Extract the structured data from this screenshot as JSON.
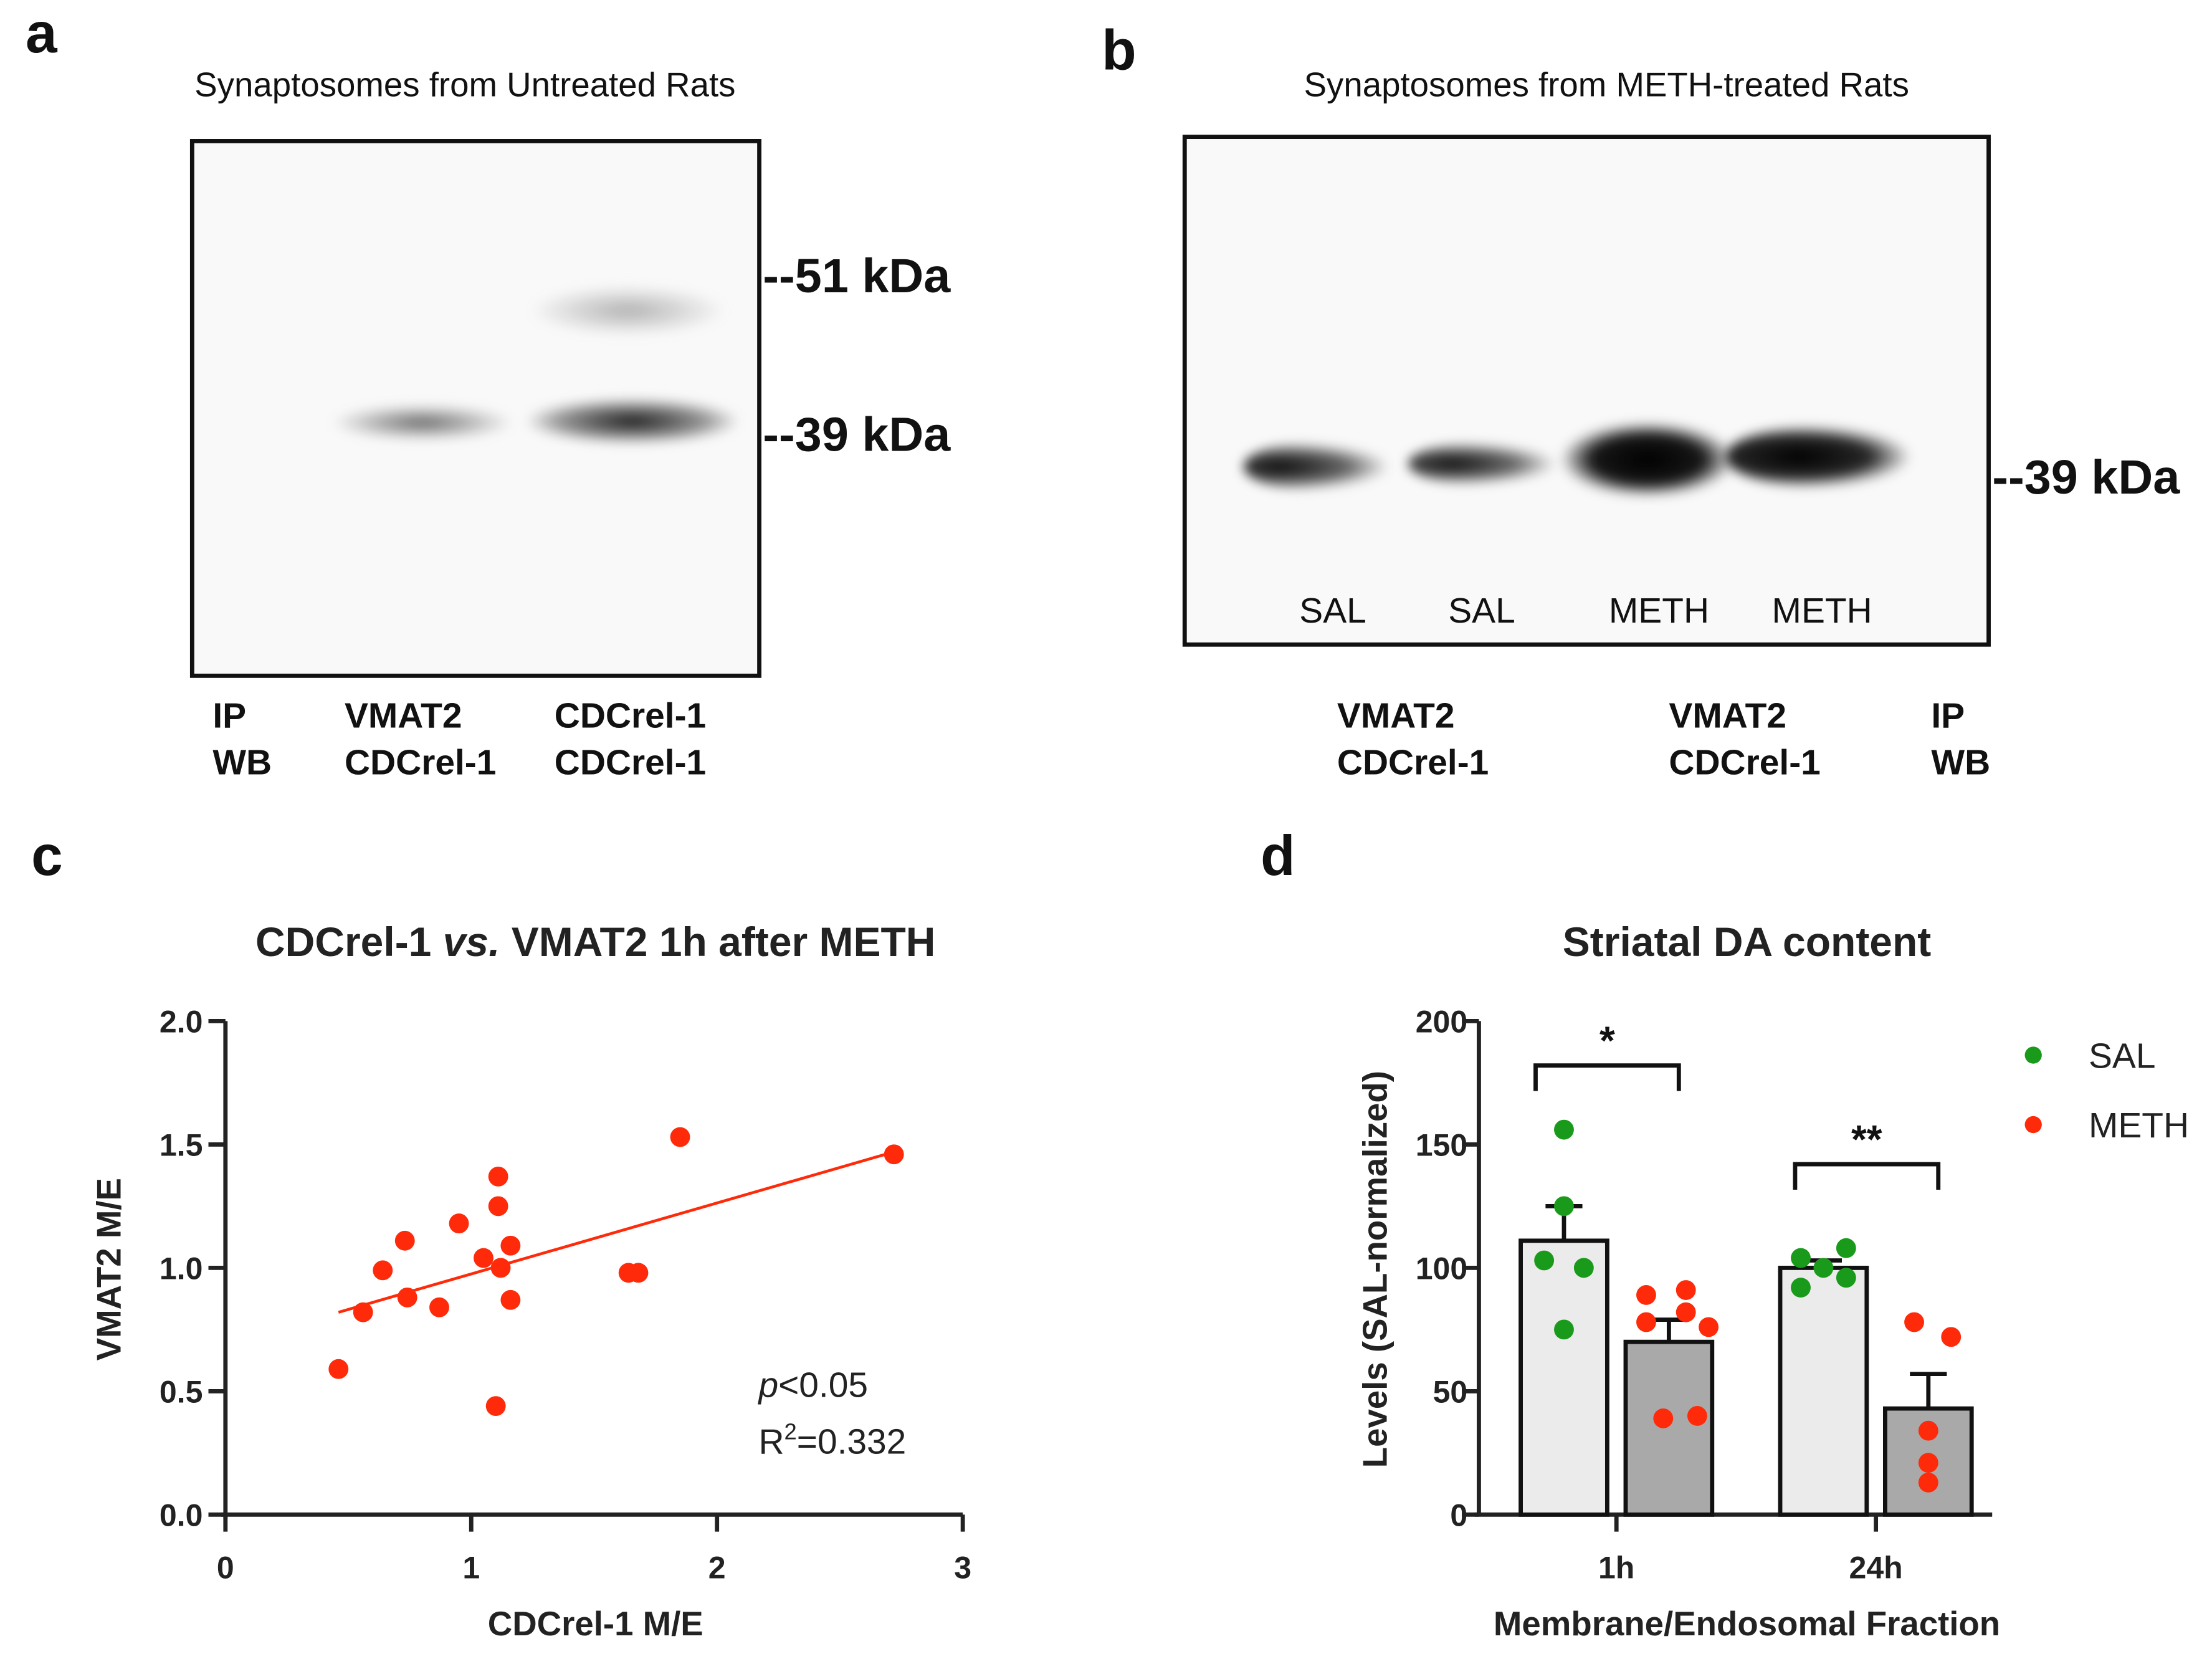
{
  "panel_a": {
    "label": "a",
    "title": "Synaptosomes from Untreated Rats",
    "markers": [
      "--51 kDa",
      "--39 kDa"
    ],
    "row_labels": [
      "IP",
      "WB"
    ],
    "lanes": [
      {
        "ip": "VMAT2",
        "wb": "CDCrel-1"
      },
      {
        "ip": "CDCrel-1",
        "wb": "CDCrel-1"
      }
    ]
  },
  "panel_b": {
    "label": "b",
    "title": "Synaptosomes from METH-treated Rats",
    "marker": "--39 kDa",
    "lane_treatments": [
      "SAL",
      "SAL",
      "METH",
      "METH"
    ],
    "row_labels": [
      "IP",
      "WB"
    ],
    "lanes": [
      {
        "ip": "VMAT2",
        "wb": "CDCrel-1"
      },
      {
        "ip": "VMAT2",
        "wb": "CDCrel-1"
      }
    ]
  },
  "panel_c": {
    "label": "c"
  },
  "panel_d": {
    "label": "d"
  },
  "chart_data": [
    {
      "type": "scatter",
      "title_parts": [
        "CDCrel-1 ",
        "vs.",
        " VMAT2 1h after METH"
      ],
      "xlabel": "CDCrel-1 M/E",
      "ylabel": "VMAT2 M/E",
      "xlim": [
        0,
        3
      ],
      "ylim": [
        0,
        2.0
      ],
      "xticks": [
        "0",
        "1",
        "2",
        "3"
      ],
      "yticks": [
        "0.0",
        "0.5",
        "1.0",
        "1.5",
        "2.0"
      ],
      "color": "#ff2a0a",
      "points": [
        [
          0.46,
          0.59
        ],
        [
          0.56,
          0.82
        ],
        [
          0.64,
          0.99
        ],
        [
          0.73,
          1.11
        ],
        [
          0.74,
          0.88
        ],
        [
          0.87,
          0.84
        ],
        [
          0.95,
          1.18
        ],
        [
          1.05,
          1.04
        ],
        [
          1.11,
          1.25
        ],
        [
          1.11,
          1.37
        ],
        [
          1.12,
          1.0
        ],
        [
          1.16,
          1.09
        ],
        [
          1.16,
          0.87
        ],
        [
          1.1,
          0.44
        ],
        [
          1.64,
          0.98
        ],
        [
          1.68,
          0.98
        ],
        [
          1.85,
          1.53
        ],
        [
          2.72,
          1.46
        ]
      ],
      "regression_line": [
        [
          0.46,
          0.82
        ],
        [
          2.72,
          1.47
        ]
      ],
      "annotations": {
        "p_prefix": "p",
        "p_rest": "<0.05",
        "r_prefix": "R",
        "r_sup": "2",
        "r_rest": "=0.332"
      }
    },
    {
      "type": "bar",
      "title": "Striatal DA content",
      "xlabel": "Membrane/Endosomal Fraction",
      "ylabel": "Levels (SAL-normalized)",
      "ylim": [
        0,
        200
      ],
      "yticks": [
        "0",
        "50",
        "100",
        "150",
        "200"
      ],
      "categories": [
        "1h",
        "24h"
      ],
      "series": [
        {
          "name": "SAL",
          "color": "#1a9a1a",
          "fill": "#ebebeb",
          "values": [
            111,
            100
          ],
          "sem": [
            14,
            3
          ],
          "points": [
            [
              156,
              125,
              103,
              100,
              75
            ],
            [
              104,
              100,
              108,
              96,
              92
            ]
          ]
        },
        {
          "name": "METH",
          "color": "#ff2a0a",
          "fill": "#a9a9a9",
          "values": [
            70,
            43
          ],
          "sem": [
            9,
            14
          ],
          "points": [
            [
              89,
              91,
              82,
              78,
              76,
              39,
              40
            ],
            [
              78,
              72,
              34,
              21,
              13
            ]
          ]
        }
      ],
      "significance": [
        "*",
        "**"
      ],
      "legend_position": "top-right"
    }
  ]
}
